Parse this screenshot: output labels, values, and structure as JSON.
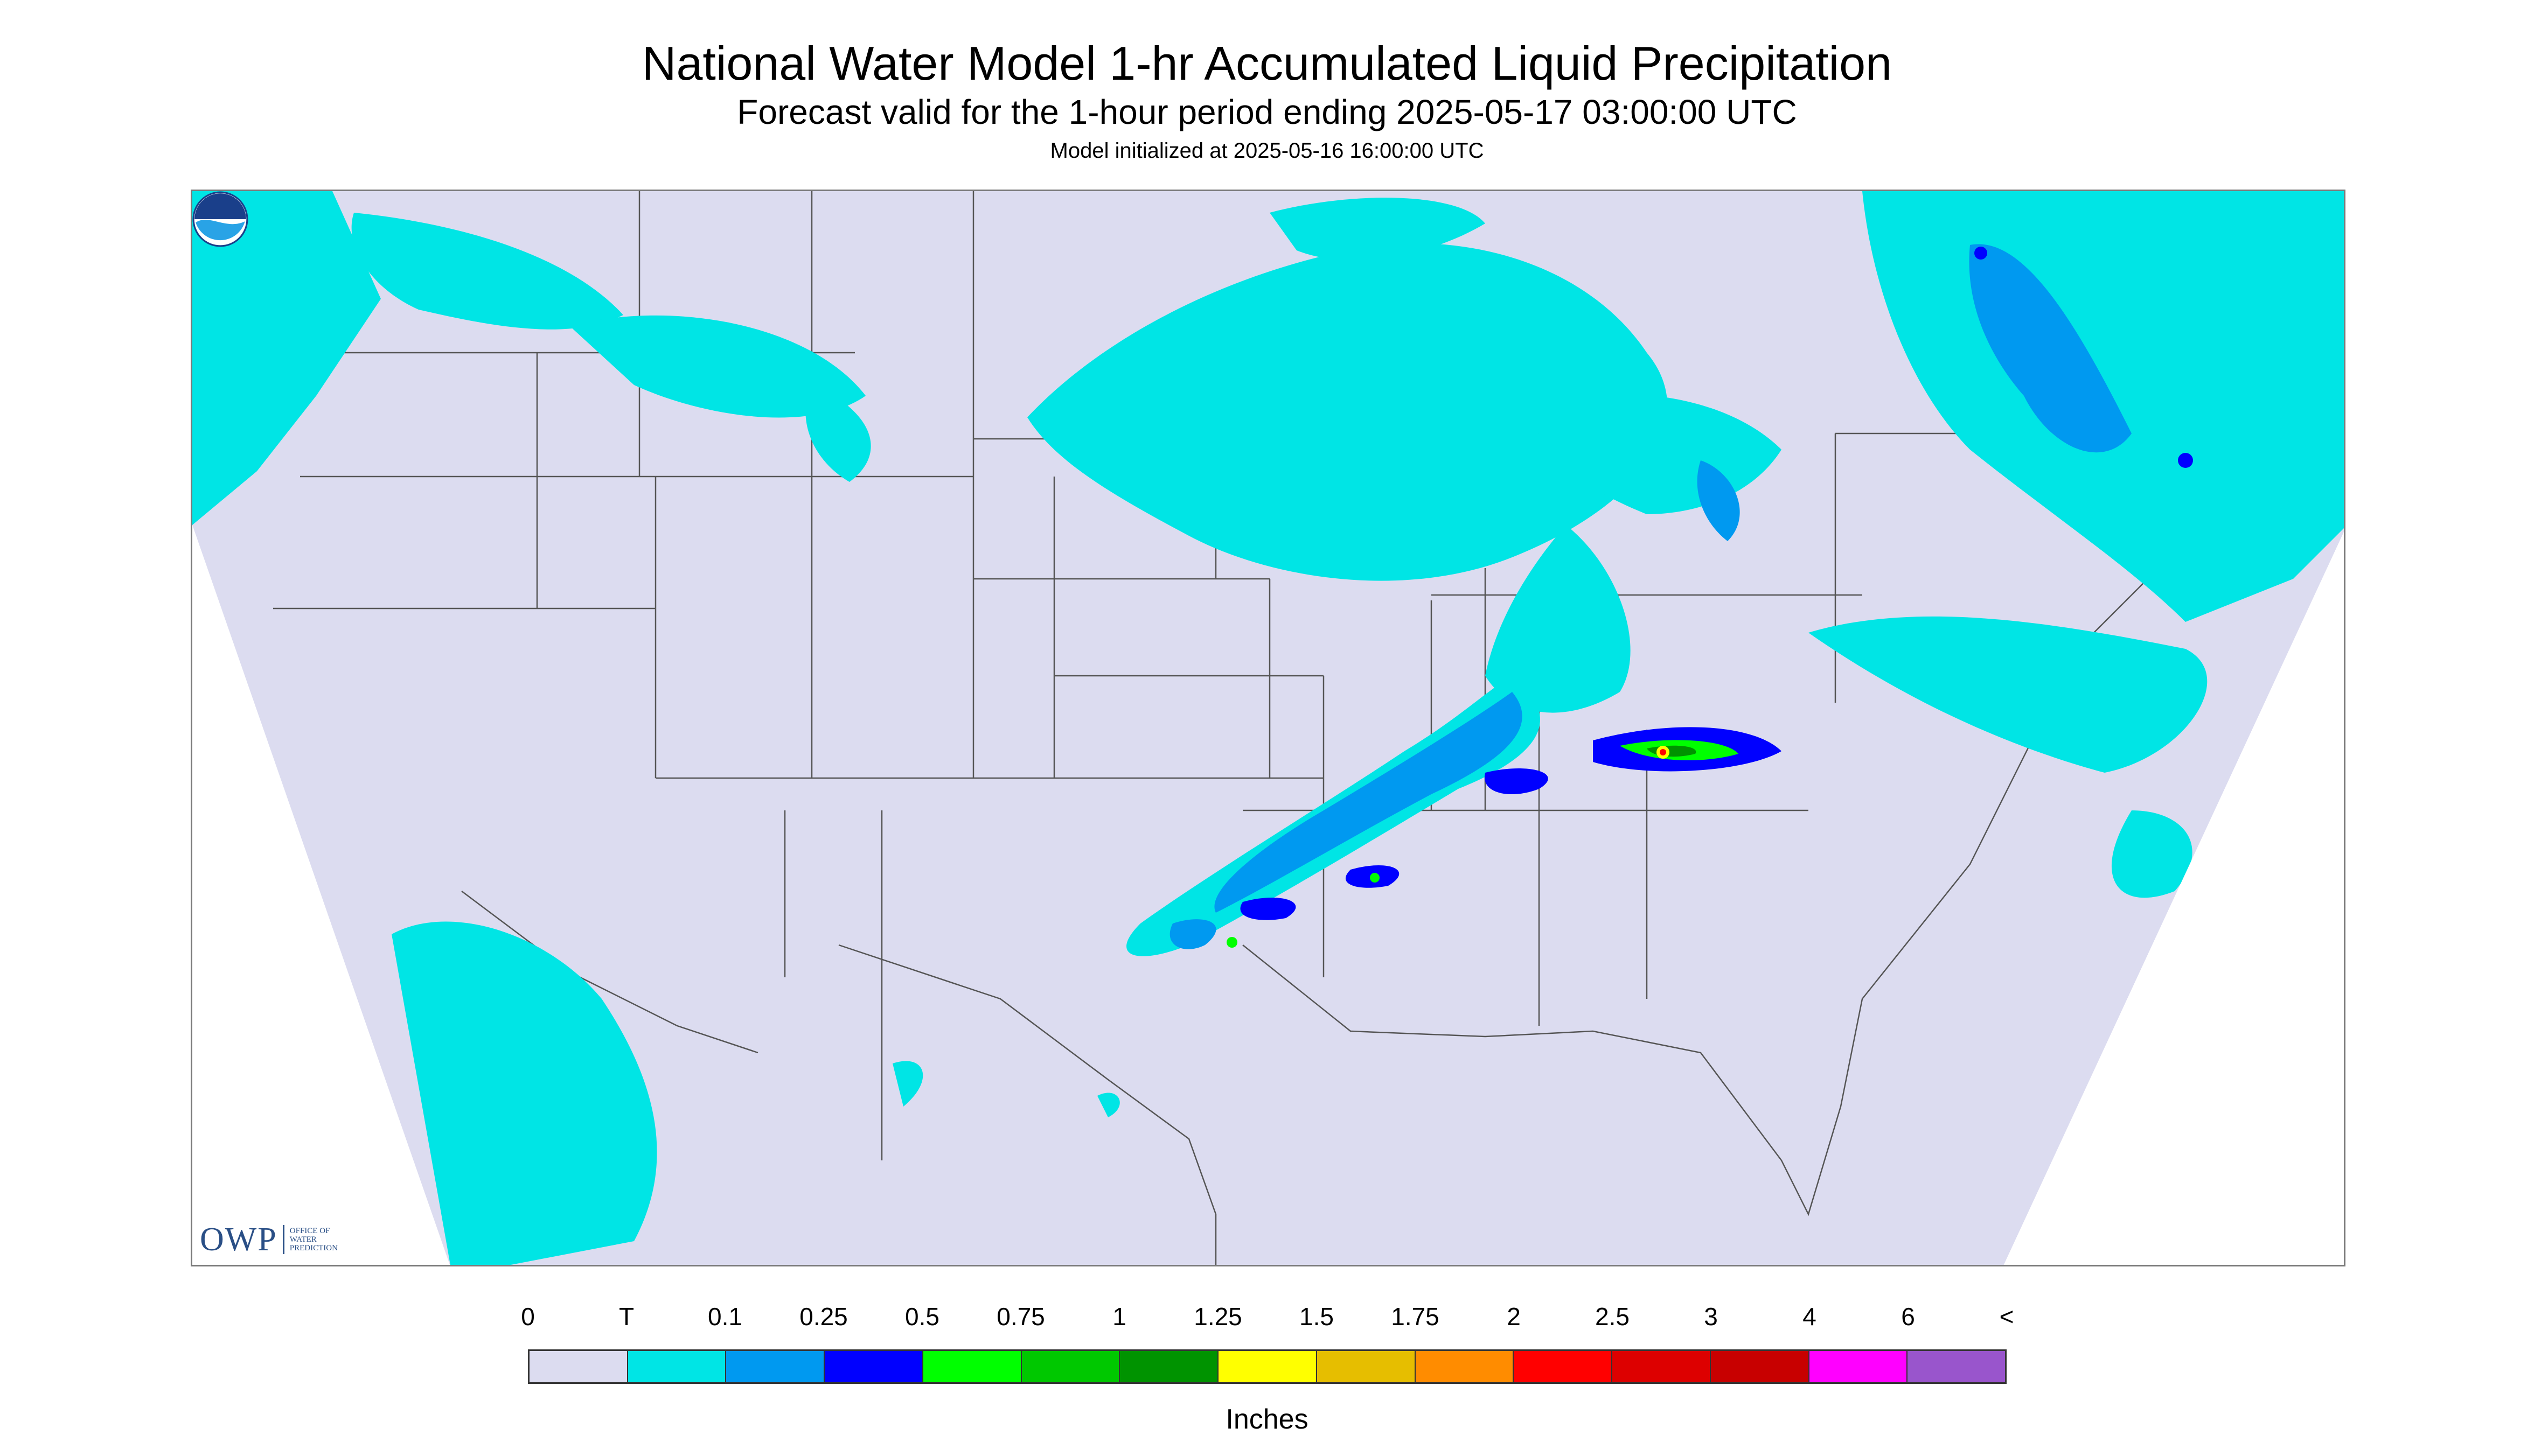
{
  "header": {
    "title": "National Water Model 1-hr Accumulated Liquid Precipitation",
    "subtitle": "Forecast valid for the 1-hour period ending 2025-05-17 03:00:00 UTC",
    "init": "Model initialized at 2025-05-16 16:00:00 UTC"
  },
  "map": {
    "colors": {
      "land": "#dcdcf0",
      "outside": "#ffffff",
      "trace": "#00e5e5",
      "light": "#0099f0",
      "blue": "#0000ff",
      "green": "#00ff00",
      "darkgreen": "#009300",
      "yellow": "#ffff00",
      "red": "#ff0000",
      "boundary": "#555555"
    }
  },
  "logos": {
    "owp_mark": "OWP",
    "owp_text": "Office of Water Prediction",
    "noaa_icon": "noaa-logo-icon"
  },
  "legend": {
    "labels": [
      "0",
      "T",
      "0.1",
      "0.25",
      "0.5",
      "0.75",
      "1",
      "1.25",
      "1.5",
      "1.75",
      "2",
      "2.5",
      "3",
      "4",
      "6",
      "<"
    ],
    "colors": [
      "#dcdcf0",
      "#00e5e5",
      "#0099f0",
      "#0000ff",
      "#00ff00",
      "#00c800",
      "#009300",
      "#ffff00",
      "#e6be00",
      "#ff8c00",
      "#ff0000",
      "#dd0000",
      "#c80000",
      "#ff00ff",
      "#9955cc"
    ],
    "units": "Inches"
  }
}
